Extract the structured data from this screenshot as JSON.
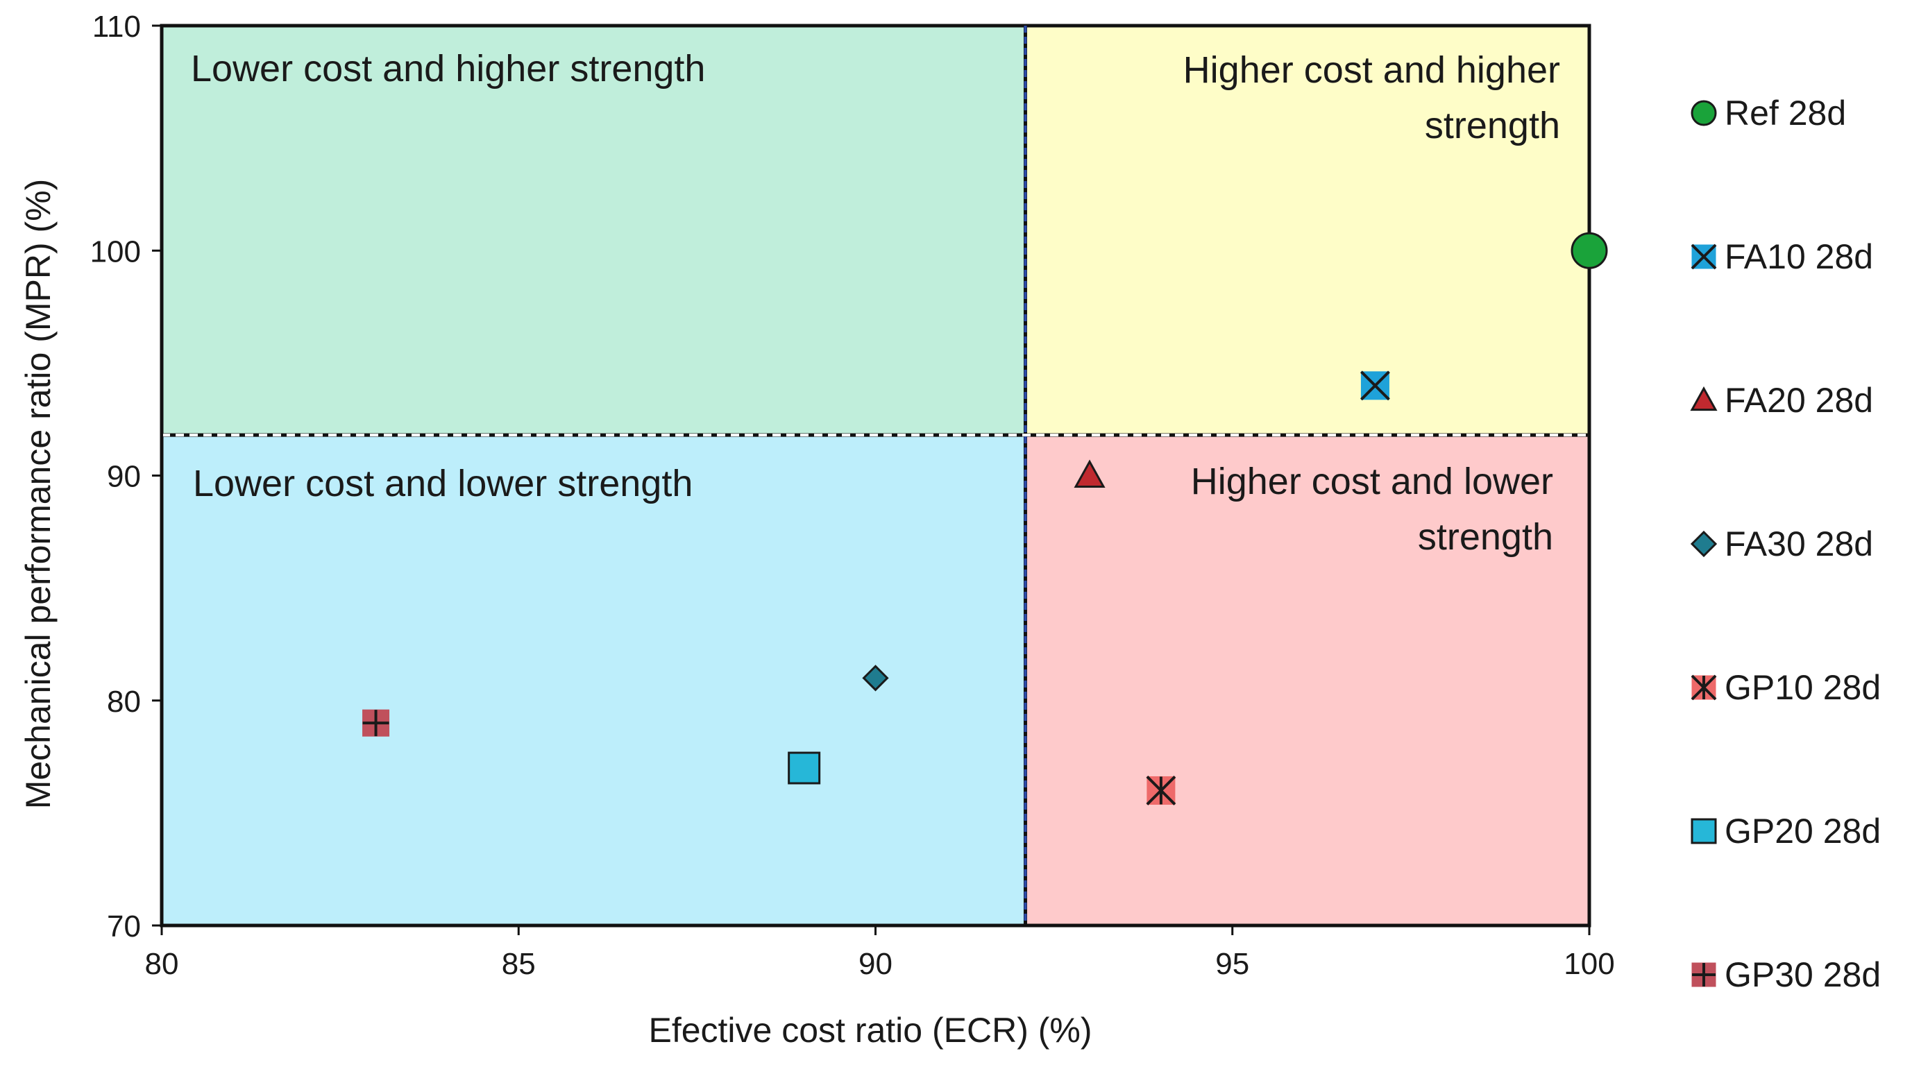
{
  "chart_data": {
    "type": "scatter",
    "title": "",
    "xlabel": "Efective cost ratio (ECR) (%)",
    "ylabel": "Mechanical performance ratio (MPR) (%)",
    "xlim": [
      80,
      100
    ],
    "ylim": [
      70,
      110
    ],
    "xticks": [
      80,
      85,
      90,
      95,
      100
    ],
    "yticks": [
      70,
      80,
      90,
      100,
      110
    ],
    "threshold": {
      "x": 92.1,
      "y": 91.8
    },
    "regions": [
      {
        "id": "lower-cost-higher-strength",
        "lines": [
          "Lower cost and higher strength"
        ],
        "color": "#c0eedb",
        "quadrant": "top-left"
      },
      {
        "id": "higher-cost-higher-strength",
        "lines": [
          "Higher cost and higher",
          "strength"
        ],
        "color": "#fefdc8",
        "quadrant": "top-right"
      },
      {
        "id": "lower-cost-lower-strength",
        "lines": [
          "Lower cost and lower strength"
        ],
        "color": "#bdeefb",
        "quadrant": "bottom-left"
      },
      {
        "id": "higher-cost-lower-strength",
        "lines": [
          "Higher cost and lower",
          "strength"
        ],
        "color": "#fecacb",
        "quadrant": "bottom-right"
      }
    ],
    "series": [
      {
        "name": "Ref 28d",
        "marker": "circle",
        "color": "#1aa33a",
        "x": 100,
        "y": 100
      },
      {
        "name": "FA10 28d",
        "marker": "x-square",
        "color": "#1fa2d9",
        "x": 97,
        "y": 94
      },
      {
        "name": "FA20 28d",
        "marker": "triangle",
        "color": "#c0292f",
        "x": 93,
        "y": 90
      },
      {
        "name": "FA30 28d",
        "marker": "diamond",
        "color": "#1f7c8f",
        "x": 90,
        "y": 81
      },
      {
        "name": "GP10 28d",
        "marker": "star-square",
        "color": "#ee6a6a",
        "x": 94,
        "y": 76
      },
      {
        "name": "GP20 28d",
        "marker": "square",
        "color": "#26b7d8",
        "x": 89,
        "y": 77
      },
      {
        "name": "GP30 28d",
        "marker": "plus-square",
        "color": "#c0505c",
        "x": 83,
        "y": 79
      }
    ],
    "legend": {
      "position": "right"
    }
  }
}
